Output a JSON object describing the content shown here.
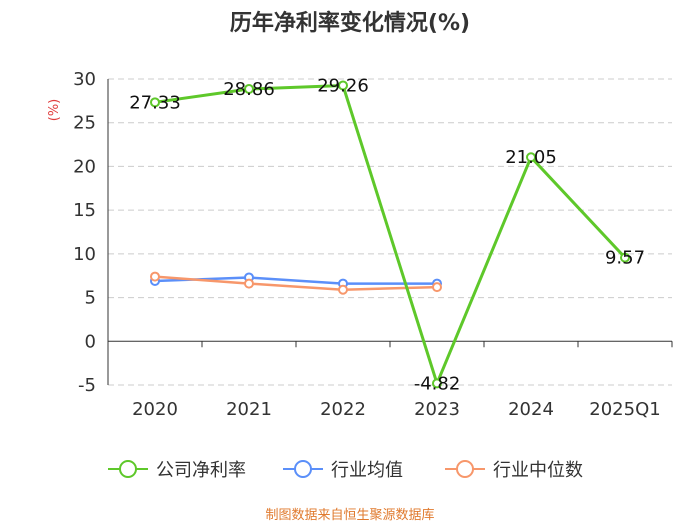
{
  "chart_data": {
    "type": "line",
    "title": "历年净利率变化情况(%)",
    "ylabel": "(%)",
    "categories": [
      "2020",
      "2021",
      "2022",
      "2023",
      "2024",
      "2025Q1"
    ],
    "ylim": [
      -5,
      30
    ],
    "yticks": [
      -5,
      0,
      5,
      10,
      15,
      20,
      25,
      30
    ],
    "grid": true,
    "legend_position": "bottom",
    "series": [
      {
        "name": "公司净利率",
        "color": "#5ec82a",
        "values": [
          27.33,
          28.86,
          29.26,
          -4.82,
          21.05,
          9.57
        ],
        "labels": [
          "27.33",
          "28.86",
          "29.26",
          "-4.82",
          "21.05",
          "9.57"
        ]
      },
      {
        "name": "行业均值",
        "color": "#5b8ff9",
        "values": [
          6.9,
          7.3,
          6.6,
          6.6,
          null,
          null
        ]
      },
      {
        "name": "行业中位数",
        "color": "#f7976b",
        "values": [
          7.4,
          6.6,
          5.9,
          6.2,
          null,
          null
        ]
      }
    ]
  },
  "colors": {
    "axis": "#333333",
    "grid": "#cccccc",
    "unit": "#e03c3c",
    "source": "#e07a2e"
  },
  "source": "制图数据来自恒生聚源数据库"
}
